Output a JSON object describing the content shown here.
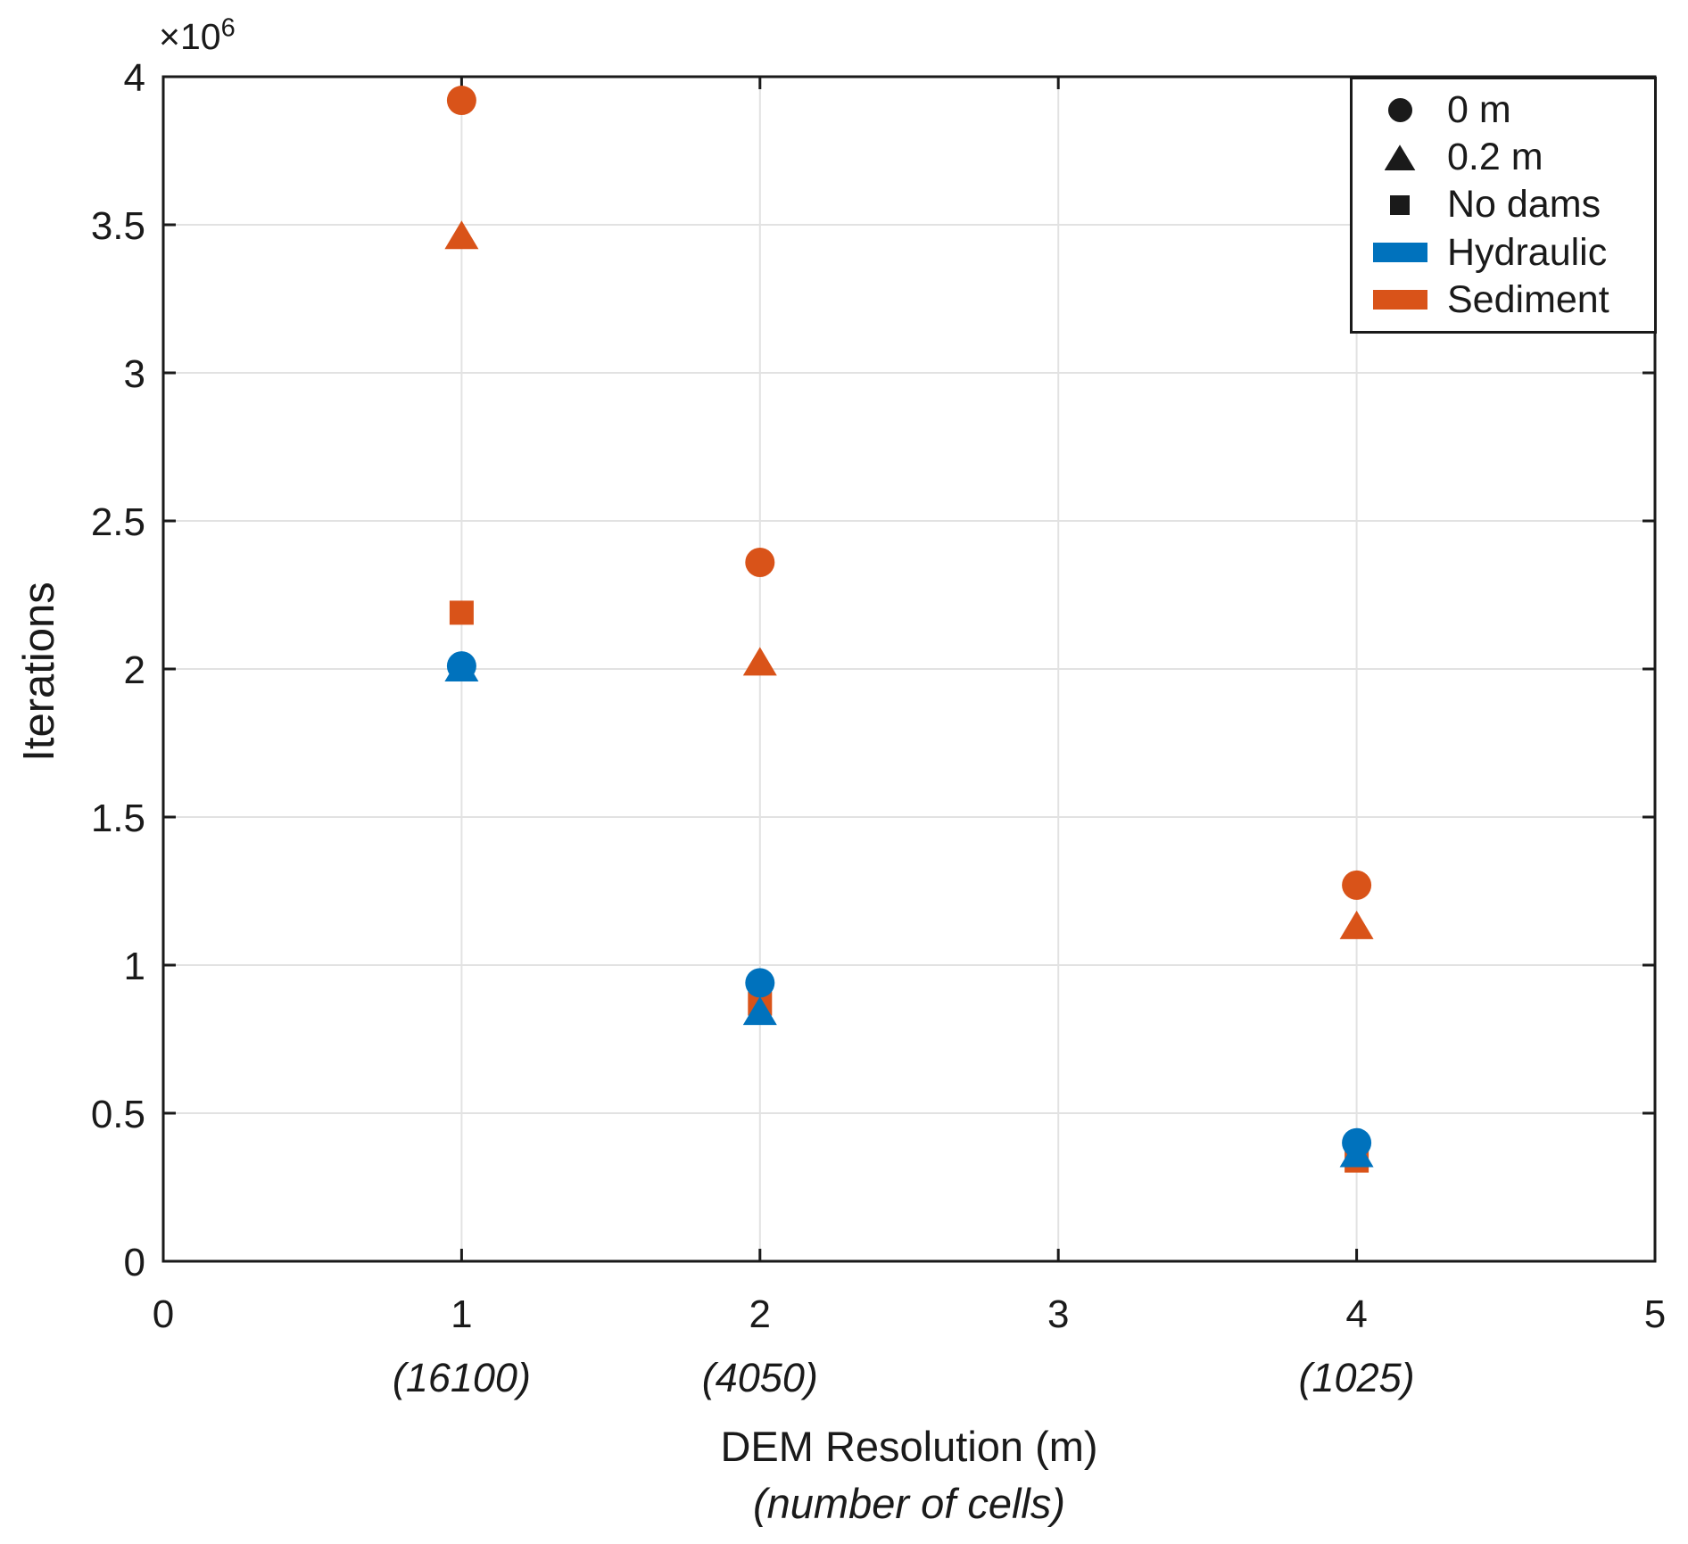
{
  "figure": {
    "background": "#ffffff",
    "text_color": "#1a1a1a",
    "grid_color": "#e2e2e2",
    "axis_color": "#1a1a1a"
  },
  "chart_data": {
    "type": "scatter",
    "title": "",
    "ylabel": "Iterations",
    "xlabel": "DEM Resolution (m)",
    "xlabel_secondary": "(number of cells)",
    "y_offset": {
      "base": "×10",
      "exp": "6"
    },
    "xlim": [
      0,
      5
    ],
    "ylim": [
      0,
      4000000
    ],
    "grid": true,
    "xticks": [
      {
        "value": 0,
        "label": "0"
      },
      {
        "value": 1,
        "label": "1"
      },
      {
        "value": 2,
        "label": "2"
      },
      {
        "value": 3,
        "label": "3"
      },
      {
        "value": 4,
        "label": "4"
      },
      {
        "value": 5,
        "label": "5"
      }
    ],
    "yticks": [
      {
        "value": 0,
        "label": "0"
      },
      {
        "value": 500000,
        "label": "0.5"
      },
      {
        "value": 1000000,
        "label": "1"
      },
      {
        "value": 1500000,
        "label": "1.5"
      },
      {
        "value": 2000000,
        "label": "2"
      },
      {
        "value": 2500000,
        "label": "2.5"
      },
      {
        "value": 3000000,
        "label": "3"
      },
      {
        "value": 3500000,
        "label": "3.5"
      },
      {
        "value": 4000000,
        "label": "4"
      }
    ],
    "cell_count_labels": [
      {
        "x": 1,
        "label": "(16100)"
      },
      {
        "x": 2,
        "label": "(4050)"
      },
      {
        "x": 4,
        "label": "(1025)"
      }
    ],
    "legend": {
      "position": "top-right",
      "items": [
        {
          "marker": "circle",
          "color": "#1a1a1a",
          "label": "0 m"
        },
        {
          "marker": "triangle",
          "color": "#1a1a1a",
          "label": "0.2 m"
        },
        {
          "marker": "square",
          "color": "#1a1a1a",
          "label": "No dams"
        },
        {
          "marker": "swatch",
          "color": "#0072BD",
          "label": "Hydraulic"
        },
        {
          "marker": "swatch",
          "color": "#D95319",
          "label": "Sediment"
        }
      ]
    },
    "series": [
      {
        "name": "Sediment 0 m",
        "process": "Sediment",
        "dam_height": "0 m",
        "marker": "circle",
        "color": "#D95319",
        "x": [
          1,
          2,
          4
        ],
        "y": [
          3920000,
          2360000,
          1270000
        ]
      },
      {
        "name": "Sediment 0.2 m",
        "process": "Sediment",
        "dam_height": "0.2 m",
        "marker": "triangle",
        "color": "#D95319",
        "x": [
          1,
          2,
          4
        ],
        "y": [
          3460000,
          2020000,
          1130000
        ]
      },
      {
        "name": "Sediment No dams",
        "process": "Sediment",
        "dam_height": "No dams",
        "marker": "square",
        "color": "#D95319",
        "x": [
          1,
          2,
          4
        ],
        "y": [
          2190000,
          870000,
          340000
        ]
      },
      {
        "name": "Hydraulic 0.2 m",
        "process": "Hydraulic",
        "dam_height": "0.2 m",
        "marker": "triangle",
        "color": "#0072BD",
        "x": [
          1,
          2,
          4
        ],
        "y": [
          2000000,
          840000,
          360000
        ]
      },
      {
        "name": "Hydraulic 0 m",
        "process": "Hydraulic",
        "dam_height": "0 m",
        "marker": "circle",
        "color": "#0072BD",
        "x": [
          1,
          2,
          4
        ],
        "y": [
          2010000,
          940000,
          400000
        ]
      }
    ]
  }
}
